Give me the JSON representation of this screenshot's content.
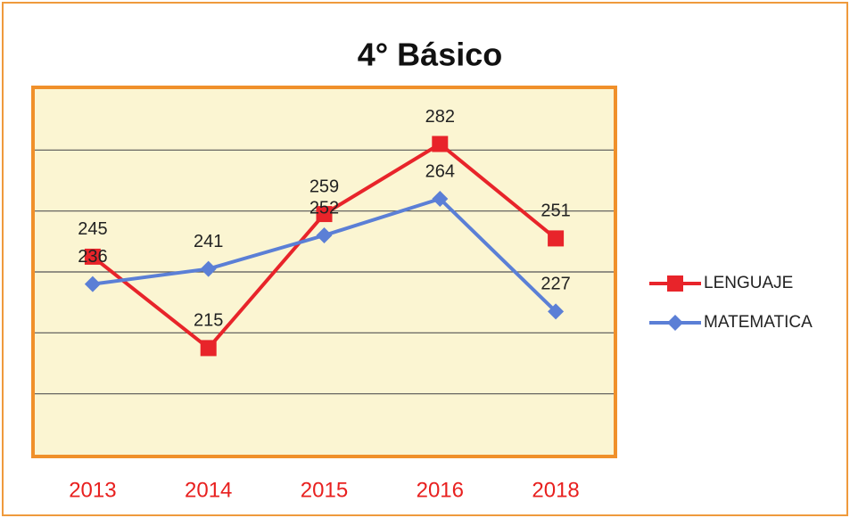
{
  "chart_data": {
    "type": "line",
    "title": "4° Básico",
    "categories": [
      "2013",
      "2014",
      "2015",
      "2016",
      "2018"
    ],
    "series": [
      {
        "name": "LENGUAJE",
        "color": "#e8242a",
        "marker": "square",
        "values": [
          245,
          215,
          259,
          282,
          251
        ]
      },
      {
        "name": "MATEMATICA",
        "color": "#5b7fd6",
        "marker": "diamond",
        "values": [
          236,
          241,
          252,
          264,
          227
        ]
      }
    ],
    "ylim": [
      180,
      300
    ],
    "yticks": [
      200,
      220,
      240,
      260,
      280
    ],
    "grid": true,
    "legend": "right"
  }
}
